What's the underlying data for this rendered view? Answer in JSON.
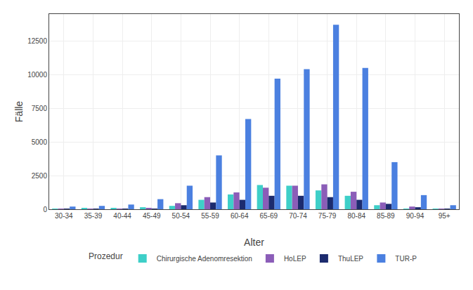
{
  "chart_data": {
    "type": "bar",
    "categories": [
      "30-34",
      "35-39",
      "40-44",
      "45-49",
      "50-54",
      "55-59",
      "60-64",
      "65-69",
      "70-74",
      "75-79",
      "80-84",
      "85-89",
      "90-94",
      "95+"
    ],
    "series": [
      {
        "name": "Chirurgische Adenomresektion",
        "color": "#3ECFC8",
        "values": [
          50,
          100,
          100,
          150,
          250,
          700,
          1100,
          1800,
          1750,
          1400,
          1000,
          300,
          50,
          20
        ]
      },
      {
        "name": "HoLEP",
        "color": "#8B5DB8",
        "values": [
          20,
          30,
          50,
          100,
          450,
          900,
          1250,
          1600,
          1750,
          1850,
          1300,
          500,
          200,
          50
        ]
      },
      {
        "name": "ThuLEP",
        "color": "#1C2B6E",
        "values": [
          10,
          20,
          30,
          50,
          300,
          500,
          700,
          1000,
          1000,
          900,
          700,
          400,
          150,
          30
        ]
      },
      {
        "name": "TUR-P",
        "color": "#4B80E0",
        "values": [
          200,
          250,
          350,
          750,
          1750,
          4000,
          6700,
          9700,
          10400,
          13700,
          10500,
          3500,
          1050,
          300
        ]
      }
    ],
    "xlabel": "Alter",
    "ylabel": "Fälle",
    "ylim": [
      0,
      14500
    ],
    "yticks": [
      0,
      2500,
      5000,
      7500,
      10000,
      12500
    ],
    "grid": true,
    "legend": "bottom",
    "legend_title": "Prozedur"
  }
}
